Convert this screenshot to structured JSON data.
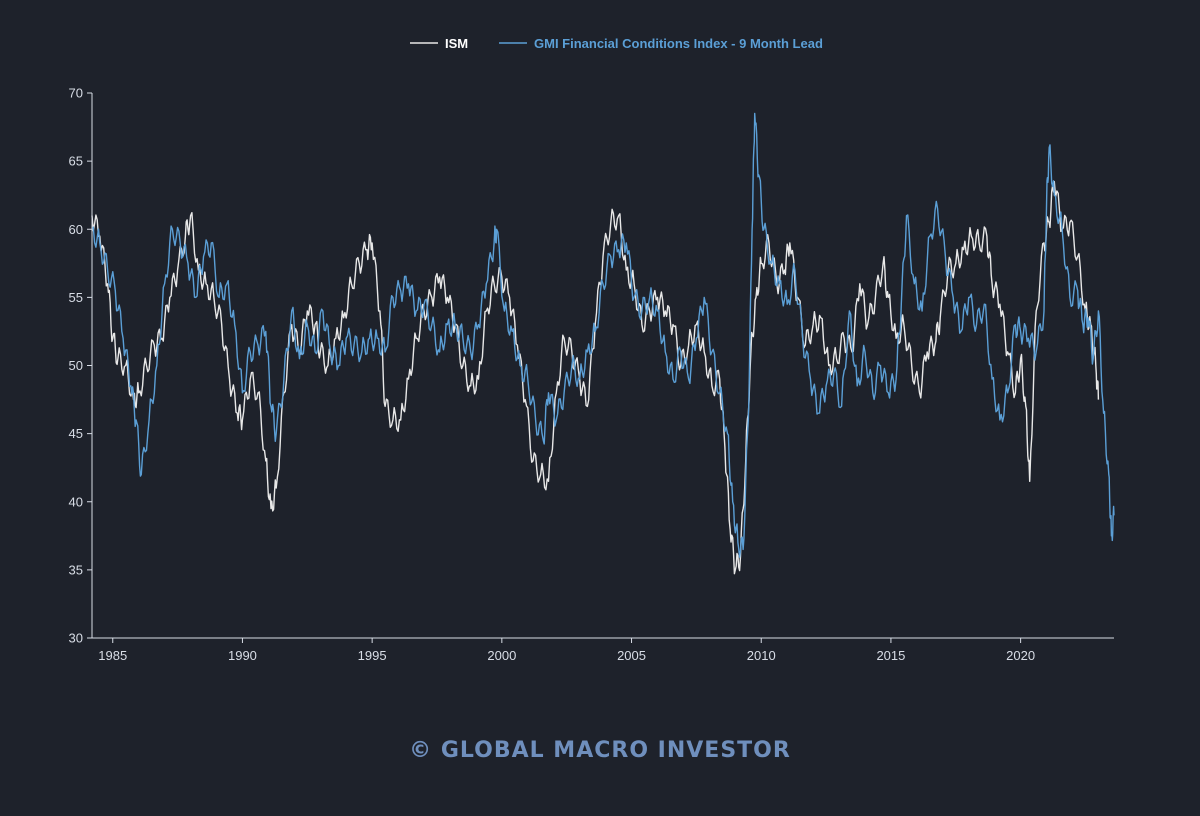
{
  "chart_data": {
    "type": "line",
    "title": "",
    "xlabel": "",
    "ylabel": "",
    "xlim": [
      1984.2,
      2023.6
    ],
    "ylim": [
      30,
      70
    ],
    "grid": false,
    "legend_position": "top-center",
    "x_ticks": [
      "1985",
      "1990",
      "1995",
      "2000",
      "2005",
      "2010",
      "2015",
      "2020"
    ],
    "y_ticks": [
      "30",
      "35",
      "40",
      "45",
      "50",
      "55",
      "60",
      "65",
      "70"
    ],
    "series": [
      {
        "name": "ISM",
        "color": "#e8e8e8",
        "points": [
          [
            1984.2,
            61
          ],
          [
            1984.5,
            59.5
          ],
          [
            1984.8,
            56
          ],
          [
            1985.0,
            52
          ],
          [
            1985.2,
            50.5
          ],
          [
            1985.5,
            50
          ],
          [
            1985.8,
            47.5
          ],
          [
            1986.0,
            48
          ],
          [
            1986.3,
            50
          ],
          [
            1986.6,
            51.5
          ],
          [
            1986.9,
            52
          ],
          [
            1987.2,
            55
          ],
          [
            1987.5,
            57
          ],
          [
            1987.8,
            59.5
          ],
          [
            1988.0,
            61
          ],
          [
            1988.3,
            57
          ],
          [
            1988.6,
            56
          ],
          [
            1988.9,
            55
          ],
          [
            1989.2,
            53
          ],
          [
            1989.5,
            49
          ],
          [
            1989.8,
            46.5
          ],
          [
            1990.0,
            46
          ],
          [
            1990.3,
            49
          ],
          [
            1990.6,
            48
          ],
          [
            1990.9,
            43
          ],
          [
            1991.1,
            39.5
          ],
          [
            1991.3,
            41
          ],
          [
            1991.6,
            48
          ],
          [
            1991.9,
            53
          ],
          [
            1992.2,
            51
          ],
          [
            1992.5,
            54
          ],
          [
            1992.8,
            53
          ],
          [
            1993.0,
            51
          ],
          [
            1993.3,
            50
          ],
          [
            1993.6,
            52
          ],
          [
            1993.9,
            53.5
          ],
          [
            1994.2,
            56
          ],
          [
            1994.5,
            57.5
          ],
          [
            1994.8,
            58.5
          ],
          [
            1995.0,
            59
          ],
          [
            1995.3,
            54
          ],
          [
            1995.5,
            47
          ],
          [
            1995.8,
            46
          ],
          [
            1996.1,
            46
          ],
          [
            1996.4,
            49
          ],
          [
            1996.7,
            52
          ],
          [
            1997.0,
            54
          ],
          [
            1997.3,
            55
          ],
          [
            1997.6,
            56.5
          ],
          [
            1997.9,
            55
          ],
          [
            1998.2,
            53
          ],
          [
            1998.5,
            50
          ],
          [
            1998.8,
            48.5
          ],
          [
            1999.1,
            49
          ],
          [
            1999.4,
            54
          ],
          [
            1999.7,
            56
          ],
          [
            2000.0,
            56.5
          ],
          [
            2000.3,
            55
          ],
          [
            2000.6,
            51.5
          ],
          [
            2000.9,
            47.5
          ],
          [
            2001.2,
            43
          ],
          [
            2001.5,
            42
          ],
          [
            2001.8,
            41.5
          ],
          [
            2002.1,
            48
          ],
          [
            2002.4,
            52
          ],
          [
            2002.7,
            51
          ],
          [
            2003.0,
            49
          ],
          [
            2003.3,
            47
          ],
          [
            2003.6,
            53
          ],
          [
            2003.9,
            58
          ],
          [
            2004.2,
            60.5
          ],
          [
            2004.5,
            61
          ],
          [
            2004.8,
            57
          ],
          [
            2005.1,
            56
          ],
          [
            2005.4,
            53
          ],
          [
            2005.7,
            54
          ],
          [
            2006.0,
            55
          ],
          [
            2006.3,
            54
          ],
          [
            2006.6,
            53
          ],
          [
            2006.9,
            50
          ],
          [
            2007.2,
            51.5
          ],
          [
            2007.5,
            53
          ],
          [
            2007.8,
            51
          ],
          [
            2008.1,
            48.5
          ],
          [
            2008.4,
            49
          ],
          [
            2008.6,
            44
          ],
          [
            2008.8,
            38
          ],
          [
            2009.0,
            35
          ],
          [
            2009.2,
            36
          ],
          [
            2009.4,
            43
          ],
          [
            2009.6,
            51
          ],
          [
            2009.8,
            55
          ],
          [
            2010.0,
            57.5
          ],
          [
            2010.3,
            59
          ],
          [
            2010.6,
            56
          ],
          [
            2010.9,
            57
          ],
          [
            2011.1,
            59
          ],
          [
            2011.4,
            55
          ],
          [
            2011.7,
            51.5
          ],
          [
            2012.0,
            53
          ],
          [
            2012.3,
            53.5
          ],
          [
            2012.6,
            50
          ],
          [
            2012.9,
            50.5
          ],
          [
            2013.2,
            52
          ],
          [
            2013.5,
            51
          ],
          [
            2013.8,
            56
          ],
          [
            2014.1,
            53
          ],
          [
            2014.4,
            55
          ],
          [
            2014.7,
            57.5
          ],
          [
            2014.9,
            55
          ],
          [
            2015.2,
            52
          ],
          [
            2015.5,
            53
          ],
          [
            2015.8,
            50
          ],
          [
            2016.1,
            48
          ],
          [
            2016.4,
            51
          ],
          [
            2016.7,
            51.5
          ],
          [
            2016.9,
            53.5
          ],
          [
            2017.2,
            57
          ],
          [
            2017.5,
            57.5
          ],
          [
            2017.8,
            58.5
          ],
          [
            2018.1,
            59.5
          ],
          [
            2018.4,
            59
          ],
          [
            2018.7,
            59.5
          ],
          [
            2018.9,
            56
          ],
          [
            2019.2,
            54.5
          ],
          [
            2019.5,
            51
          ],
          [
            2019.8,
            48
          ],
          [
            2020.0,
            50.5
          ],
          [
            2020.2,
            47
          ],
          [
            2020.35,
            41.5
          ],
          [
            2020.6,
            54
          ],
          [
            2020.9,
            59
          ],
          [
            2021.1,
            60.5
          ],
          [
            2021.3,
            63.5
          ],
          [
            2021.6,
            60
          ],
          [
            2021.9,
            60.5
          ],
          [
            2022.2,
            58
          ],
          [
            2022.5,
            54
          ],
          [
            2022.7,
            53
          ],
          [
            2022.9,
            50
          ],
          [
            2023.0,
            47.5
          ]
        ]
      },
      {
        "name": "GMI Financial Conditions Index - 9 Month Lead",
        "color": "#5b9fd6",
        "points": [
          [
            1984.2,
            60
          ],
          [
            1984.5,
            59
          ],
          [
            1984.8,
            57
          ],
          [
            1985.1,
            55.5
          ],
          [
            1985.4,
            52
          ],
          [
            1985.7,
            48.5
          ],
          [
            1985.9,
            46
          ],
          [
            1986.1,
            42
          ],
          [
            1986.4,
            46
          ],
          [
            1986.7,
            50
          ],
          [
            1987.0,
            56
          ],
          [
            1987.3,
            60
          ],
          [
            1987.6,
            59
          ],
          [
            1987.9,
            57.5
          ],
          [
            1988.2,
            55
          ],
          [
            1988.5,
            58
          ],
          [
            1988.8,
            59
          ],
          [
            1989.1,
            55
          ],
          [
            1989.4,
            56
          ],
          [
            1989.7,
            53
          ],
          [
            1990.0,
            48
          ],
          [
            1990.3,
            51
          ],
          [
            1990.6,
            51.5
          ],
          [
            1990.9,
            52.5
          ],
          [
            1991.1,
            47
          ],
          [
            1991.3,
            45
          ],
          [
            1991.6,
            49
          ],
          [
            1991.9,
            54
          ],
          [
            1992.2,
            50.5
          ],
          [
            1992.5,
            53
          ],
          [
            1992.8,
            51
          ],
          [
            1993.1,
            54
          ],
          [
            1993.4,
            51
          ],
          [
            1993.7,
            50
          ],
          [
            1994.0,
            52
          ],
          [
            1994.3,
            51.5
          ],
          [
            1994.6,
            51
          ],
          [
            1994.9,
            52
          ],
          [
            1995.2,
            52
          ],
          [
            1995.5,
            51
          ],
          [
            1995.8,
            55
          ],
          [
            1996.1,
            55.5
          ],
          [
            1996.4,
            56
          ],
          [
            1996.7,
            54
          ],
          [
            1997.0,
            54.5
          ],
          [
            1997.3,
            53
          ],
          [
            1997.6,
            51
          ],
          [
            1997.9,
            53
          ],
          [
            1998.2,
            53
          ],
          [
            1998.5,
            52
          ],
          [
            1998.8,
            51
          ],
          [
            1999.1,
            53
          ],
          [
            1999.4,
            56
          ],
          [
            1999.7,
            59
          ],
          [
            1999.8,
            60
          ],
          [
            2000.1,
            54
          ],
          [
            2000.4,
            52.5
          ],
          [
            2000.7,
            50
          ],
          [
            2001.0,
            49
          ],
          [
            2001.3,
            46
          ],
          [
            2001.6,
            44.5
          ],
          [
            2001.8,
            48
          ],
          [
            2002.1,
            46
          ],
          [
            2002.4,
            48
          ],
          [
            2002.7,
            50
          ],
          [
            2003.0,
            49
          ],
          [
            2003.3,
            51
          ],
          [
            2003.6,
            52.5
          ],
          [
            2003.9,
            56
          ],
          [
            2004.2,
            58
          ],
          [
            2004.5,
            58.5
          ],
          [
            2004.8,
            59
          ],
          [
            2005.1,
            55
          ],
          [
            2005.4,
            54
          ],
          [
            2005.7,
            55
          ],
          [
            2006.0,
            54
          ],
          [
            2006.3,
            51
          ],
          [
            2006.6,
            49
          ],
          [
            2006.9,
            51
          ],
          [
            2007.2,
            49
          ],
          [
            2007.5,
            52
          ],
          [
            2007.8,
            55
          ],
          [
            2008.1,
            51
          ],
          [
            2008.4,
            48
          ],
          [
            2008.7,
            45
          ],
          [
            2008.9,
            40
          ],
          [
            2009.1,
            37
          ],
          [
            2009.3,
            36.5
          ],
          [
            2009.5,
            46
          ],
          [
            2009.65,
            60
          ],
          [
            2009.75,
            68.5
          ],
          [
            2009.9,
            64
          ],
          [
            2010.1,
            60
          ],
          [
            2010.4,
            57.5
          ],
          [
            2010.7,
            56
          ],
          [
            2011.0,
            54.5
          ],
          [
            2011.3,
            57
          ],
          [
            2011.6,
            52
          ],
          [
            2011.9,
            49
          ],
          [
            2012.2,
            46.5
          ],
          [
            2012.5,
            48.5
          ],
          [
            2012.8,
            49.5
          ],
          [
            2013.1,
            47
          ],
          [
            2013.4,
            54
          ],
          [
            2013.7,
            48.5
          ],
          [
            2014.0,
            51
          ],
          [
            2014.3,
            48
          ],
          [
            2014.6,
            50
          ],
          [
            2014.9,
            48
          ],
          [
            2015.2,
            49
          ],
          [
            2015.4,
            54.5
          ],
          [
            2015.6,
            61
          ],
          [
            2015.9,
            56
          ],
          [
            2016.2,
            54
          ],
          [
            2016.5,
            59.5
          ],
          [
            2016.8,
            61.5
          ],
          [
            2017.1,
            58
          ],
          [
            2017.4,
            55
          ],
          [
            2017.7,
            52.5
          ],
          [
            2018.0,
            55
          ],
          [
            2018.3,
            53
          ],
          [
            2018.6,
            54.5
          ],
          [
            2018.9,
            49
          ],
          [
            2019.2,
            46
          ],
          [
            2019.5,
            48
          ],
          [
            2019.8,
            53
          ],
          [
            2020.0,
            52.5
          ],
          [
            2020.3,
            52
          ],
          [
            2020.6,
            51
          ],
          [
            2020.9,
            54
          ],
          [
            2021.0,
            62
          ],
          [
            2021.1,
            66
          ],
          [
            2021.3,
            62.5
          ],
          [
            2021.6,
            60
          ],
          [
            2021.9,
            55
          ],
          [
            2022.2,
            55.5
          ],
          [
            2022.4,
            53
          ],
          [
            2022.6,
            53.5
          ],
          [
            2022.8,
            50.5
          ],
          [
            2023.0,
            54
          ],
          [
            2023.2,
            46.5
          ],
          [
            2023.4,
            42
          ],
          [
            2023.5,
            37.5
          ],
          [
            2023.6,
            39
          ]
        ]
      }
    ]
  },
  "watermark": {
    "symbol": "©",
    "text": "GLOBAL MACRO INVESTOR"
  }
}
